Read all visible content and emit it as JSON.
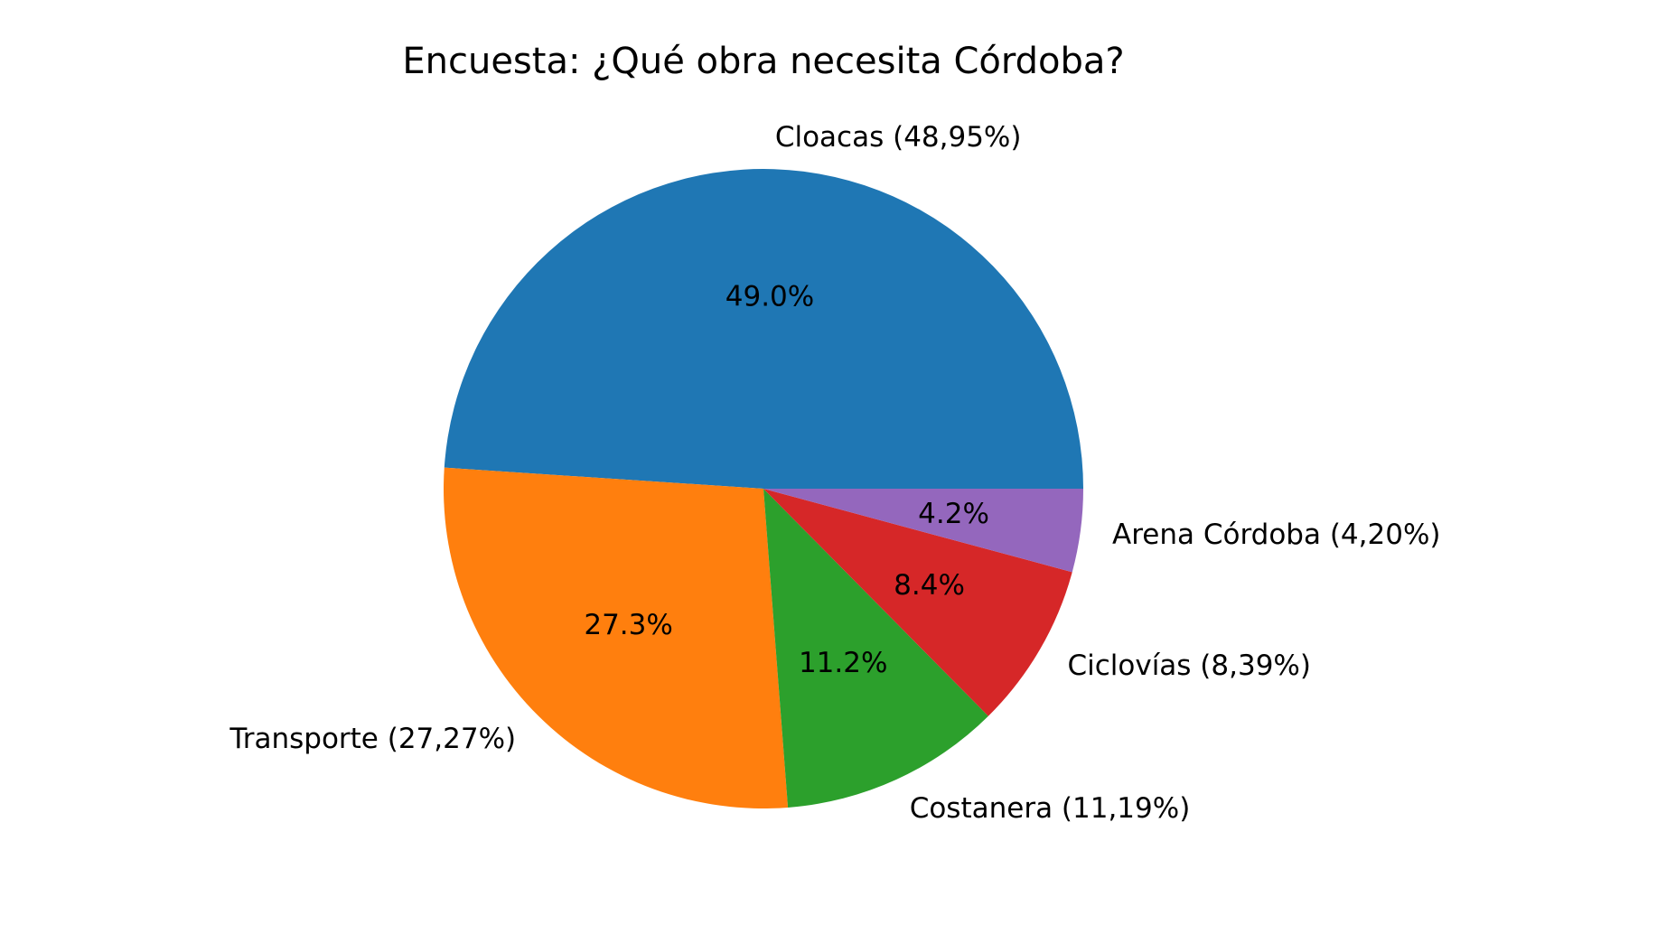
{
  "chart_data": {
    "type": "pie",
    "title": "Encuesta: ¿Qué obra necesita Córdoba?",
    "start_angle_deg": 0,
    "direction": "counterclockwise",
    "slices": [
      {
        "label": "Cloacas (48,95%)",
        "value": 48.95,
        "pct_label": "49.0%",
        "color": "#1f77b4"
      },
      {
        "label": "Transporte (27,27%)",
        "value": 27.27,
        "pct_label": "27.3%",
        "color": "#ff7f0e"
      },
      {
        "label": "Costanera (11,19%)",
        "value": 11.19,
        "pct_label": "11.2%",
        "color": "#2ca02c"
      },
      {
        "label": "Ciclovías (8,39%)",
        "value": 8.39,
        "pct_label": "8.4%",
        "color": "#d62728"
      },
      {
        "label": "Arena Córdoba (4,20%)",
        "value": 4.2,
        "pct_label": "4.2%",
        "color": "#9467bd"
      }
    ]
  }
}
